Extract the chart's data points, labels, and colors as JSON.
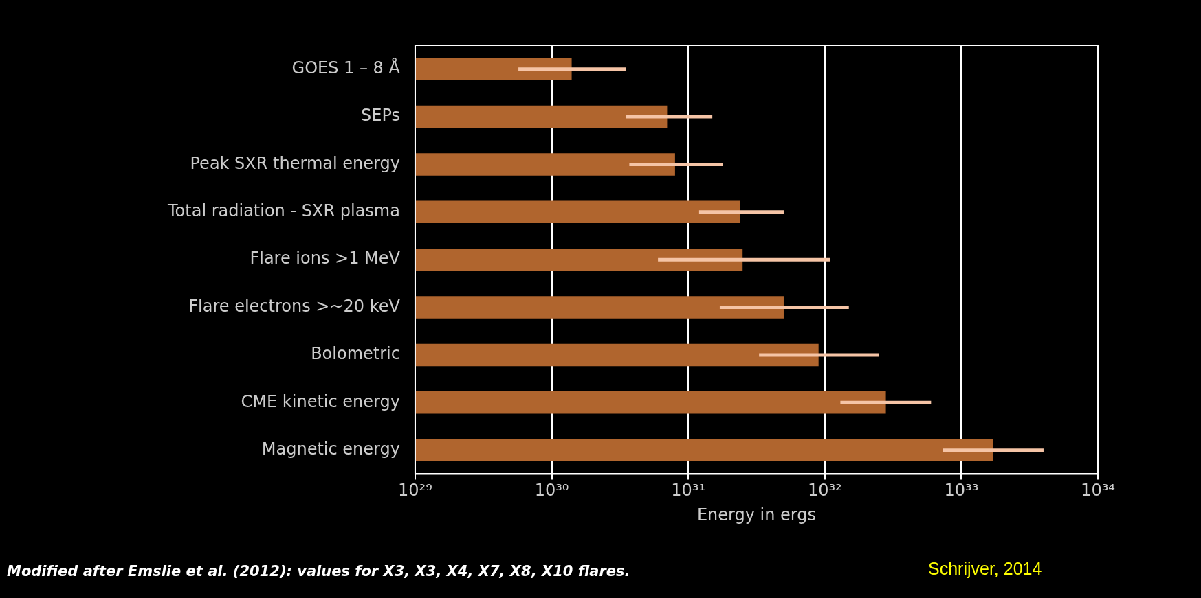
{
  "chart_data": {
    "type": "bar",
    "orientation": "horizontal",
    "log": "x",
    "xlabel": "Energy in ergs",
    "categories": [
      "GOES 1 – 8 Å",
      "SEPs",
      "Peak SXR thermal energy",
      "Total radiation - SXR plasma",
      "Flare ions >1 MeV",
      "Flare electrons >~20 keV",
      "Bolometric",
      "CME kinetic energy",
      "Magnetic energy"
    ],
    "values": [
      1.4e+30,
      7e+30,
      8e+30,
      2.4e+31,
      2.5e+31,
      5e+31,
      9e+31,
      2.8e+32,
      1.7e+33
    ],
    "errors": [
      [
        5.7e+29,
        3.5e+30
      ],
      [
        3.5e+30,
        1.5e+31
      ],
      [
        3.7e+30,
        1.8e+31
      ],
      [
        1.2e+31,
        5e+31
      ],
      [
        6e+30,
        1.1e+32
      ],
      [
        1.7e+31,
        1.5e+32
      ],
      [
        3.3e+31,
        2.5e+32
      ],
      [
        1.3e+32,
        6e+32
      ],
      [
        7.3e+32,
        4e+33
      ]
    ],
    "color": "#b0652e",
    "xlim": [
      1e+29,
      1e+34
    ],
    "xticks": [
      {
        "value": 1e+29,
        "label": "10²⁹"
      },
      {
        "value": 1e+30,
        "label": "10³⁰"
      },
      {
        "value": 1e+31,
        "label": "10³¹"
      },
      {
        "value": 1e+32,
        "label": "10³²"
      },
      {
        "value": 1e+33,
        "label": "10³³"
      },
      {
        "value": 1e+34,
        "label": "10³⁴"
      }
    ],
    "grid": "x",
    "legend": false,
    "annotations": [
      "Modified after Emslie et al. (2012): values for X3, X3, X4, X7, X8, X10 flares.",
      "Schrijver, 2014"
    ]
  }
}
